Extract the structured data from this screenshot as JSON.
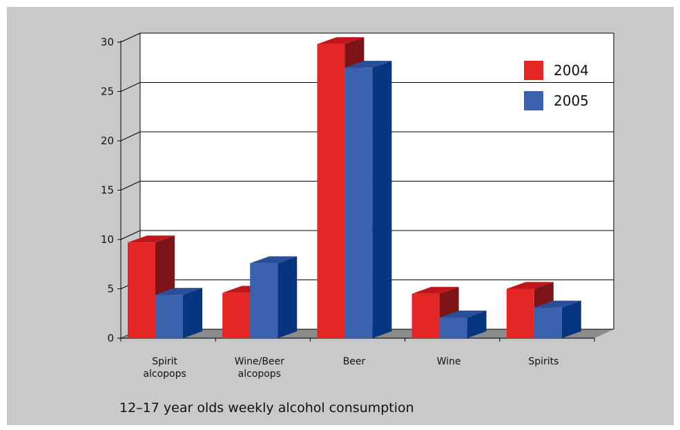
{
  "caption": "12–17 year olds weekly alcohol consumption",
  "colors": {
    "background": "#c8c9ca",
    "plot_back": "#ffffff",
    "floor": "#8c8c8c",
    "series_2004_front": "#e42624",
    "series_2004_top": "#c2161d",
    "series_2004_side": "#7d1417",
    "series_2005_front": "#3b62ac",
    "series_2005_top": "#2a4f98",
    "series_2005_side": "#073580"
  },
  "chart_data": {
    "type": "bar",
    "style": "3d-clustered",
    "categories": [
      [
        "Spirit",
        "alcopops"
      ],
      [
        "Wine/Beer",
        "alcopops"
      ],
      [
        "Beer"
      ],
      [
        "Wine"
      ],
      [
        "Spirits"
      ]
    ],
    "series": [
      {
        "name": "2004",
        "values": [
          9.7,
          4.6,
          29.8,
          4.5,
          5.0
        ]
      },
      {
        "name": "2005",
        "values": [
          4.4,
          7.6,
          27.4,
          2.1,
          3.1
        ]
      }
    ],
    "y_ticks": [
      "0",
      "5",
      "10",
      "15",
      "20",
      "25",
      "30"
    ],
    "ylim": [
      0,
      30
    ],
    "grid": true,
    "legend": "top-right"
  }
}
